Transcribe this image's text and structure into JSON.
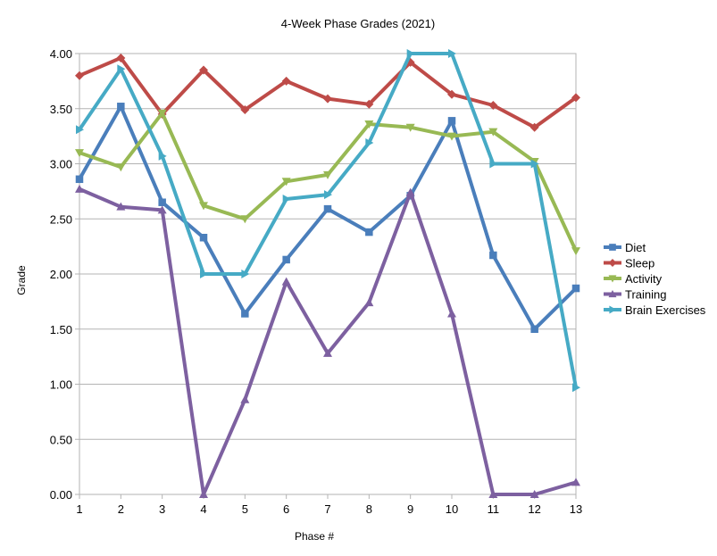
{
  "chart_data": {
    "type": "line",
    "title": "4-Week Phase Grades (2021)",
    "xlabel": "Phase #",
    "ylabel": "Grade",
    "x": [
      1,
      2,
      3,
      4,
      5,
      6,
      7,
      8,
      9,
      10,
      11,
      12,
      13
    ],
    "x_tick_labels": [
      "1",
      "2",
      "3",
      "4",
      "5",
      "6",
      "7",
      "8",
      "9",
      "10",
      "11",
      "12",
      "13"
    ],
    "ylim": [
      0,
      4
    ],
    "y_ticks": [
      0,
      0.5,
      1,
      1.5,
      2,
      2.5,
      3,
      3.5,
      4
    ],
    "y_tick_labels": [
      "0.00",
      "0.50",
      "1.00",
      "1.50",
      "2.00",
      "2.50",
      "3.00",
      "3.50",
      "4.00"
    ],
    "grid": "horizontal",
    "legend_position": "right",
    "series": [
      {
        "name": "Diet",
        "color": "#4a7ebb",
        "marker": "square",
        "values": [
          2.86,
          3.52,
          2.65,
          2.33,
          1.64,
          2.13,
          2.59,
          2.38,
          2.71,
          3.39,
          2.17,
          1.5,
          1.87
        ]
      },
      {
        "name": "Sleep",
        "color": "#be4b48",
        "marker": "diamond",
        "values": [
          3.8,
          3.96,
          3.45,
          3.85,
          3.49,
          3.75,
          3.59,
          3.54,
          3.92,
          3.63,
          3.53,
          3.33,
          3.6
        ]
      },
      {
        "name": "Activity",
        "color": "#98b954",
        "marker": "triangle-down",
        "values": [
          3.1,
          2.97,
          3.46,
          2.62,
          2.5,
          2.84,
          2.9,
          3.36,
          3.33,
          3.25,
          3.29,
          3.02,
          2.21
        ]
      },
      {
        "name": "Training",
        "color": "#7d60a0",
        "marker": "triangle-up",
        "values": [
          2.77,
          2.61,
          2.58,
          0.0,
          0.86,
          1.93,
          1.28,
          1.74,
          2.74,
          1.64,
          0.0,
          0.0,
          0.11
        ]
      },
      {
        "name": "Brain Exercises",
        "color": "#46aac5",
        "marker": "triangle-right",
        "values": [
          3.31,
          3.86,
          3.07,
          2.0,
          2.0,
          2.68,
          2.72,
          3.19,
          4.0,
          4.0,
          3.0,
          3.0,
          0.97
        ]
      }
    ]
  }
}
